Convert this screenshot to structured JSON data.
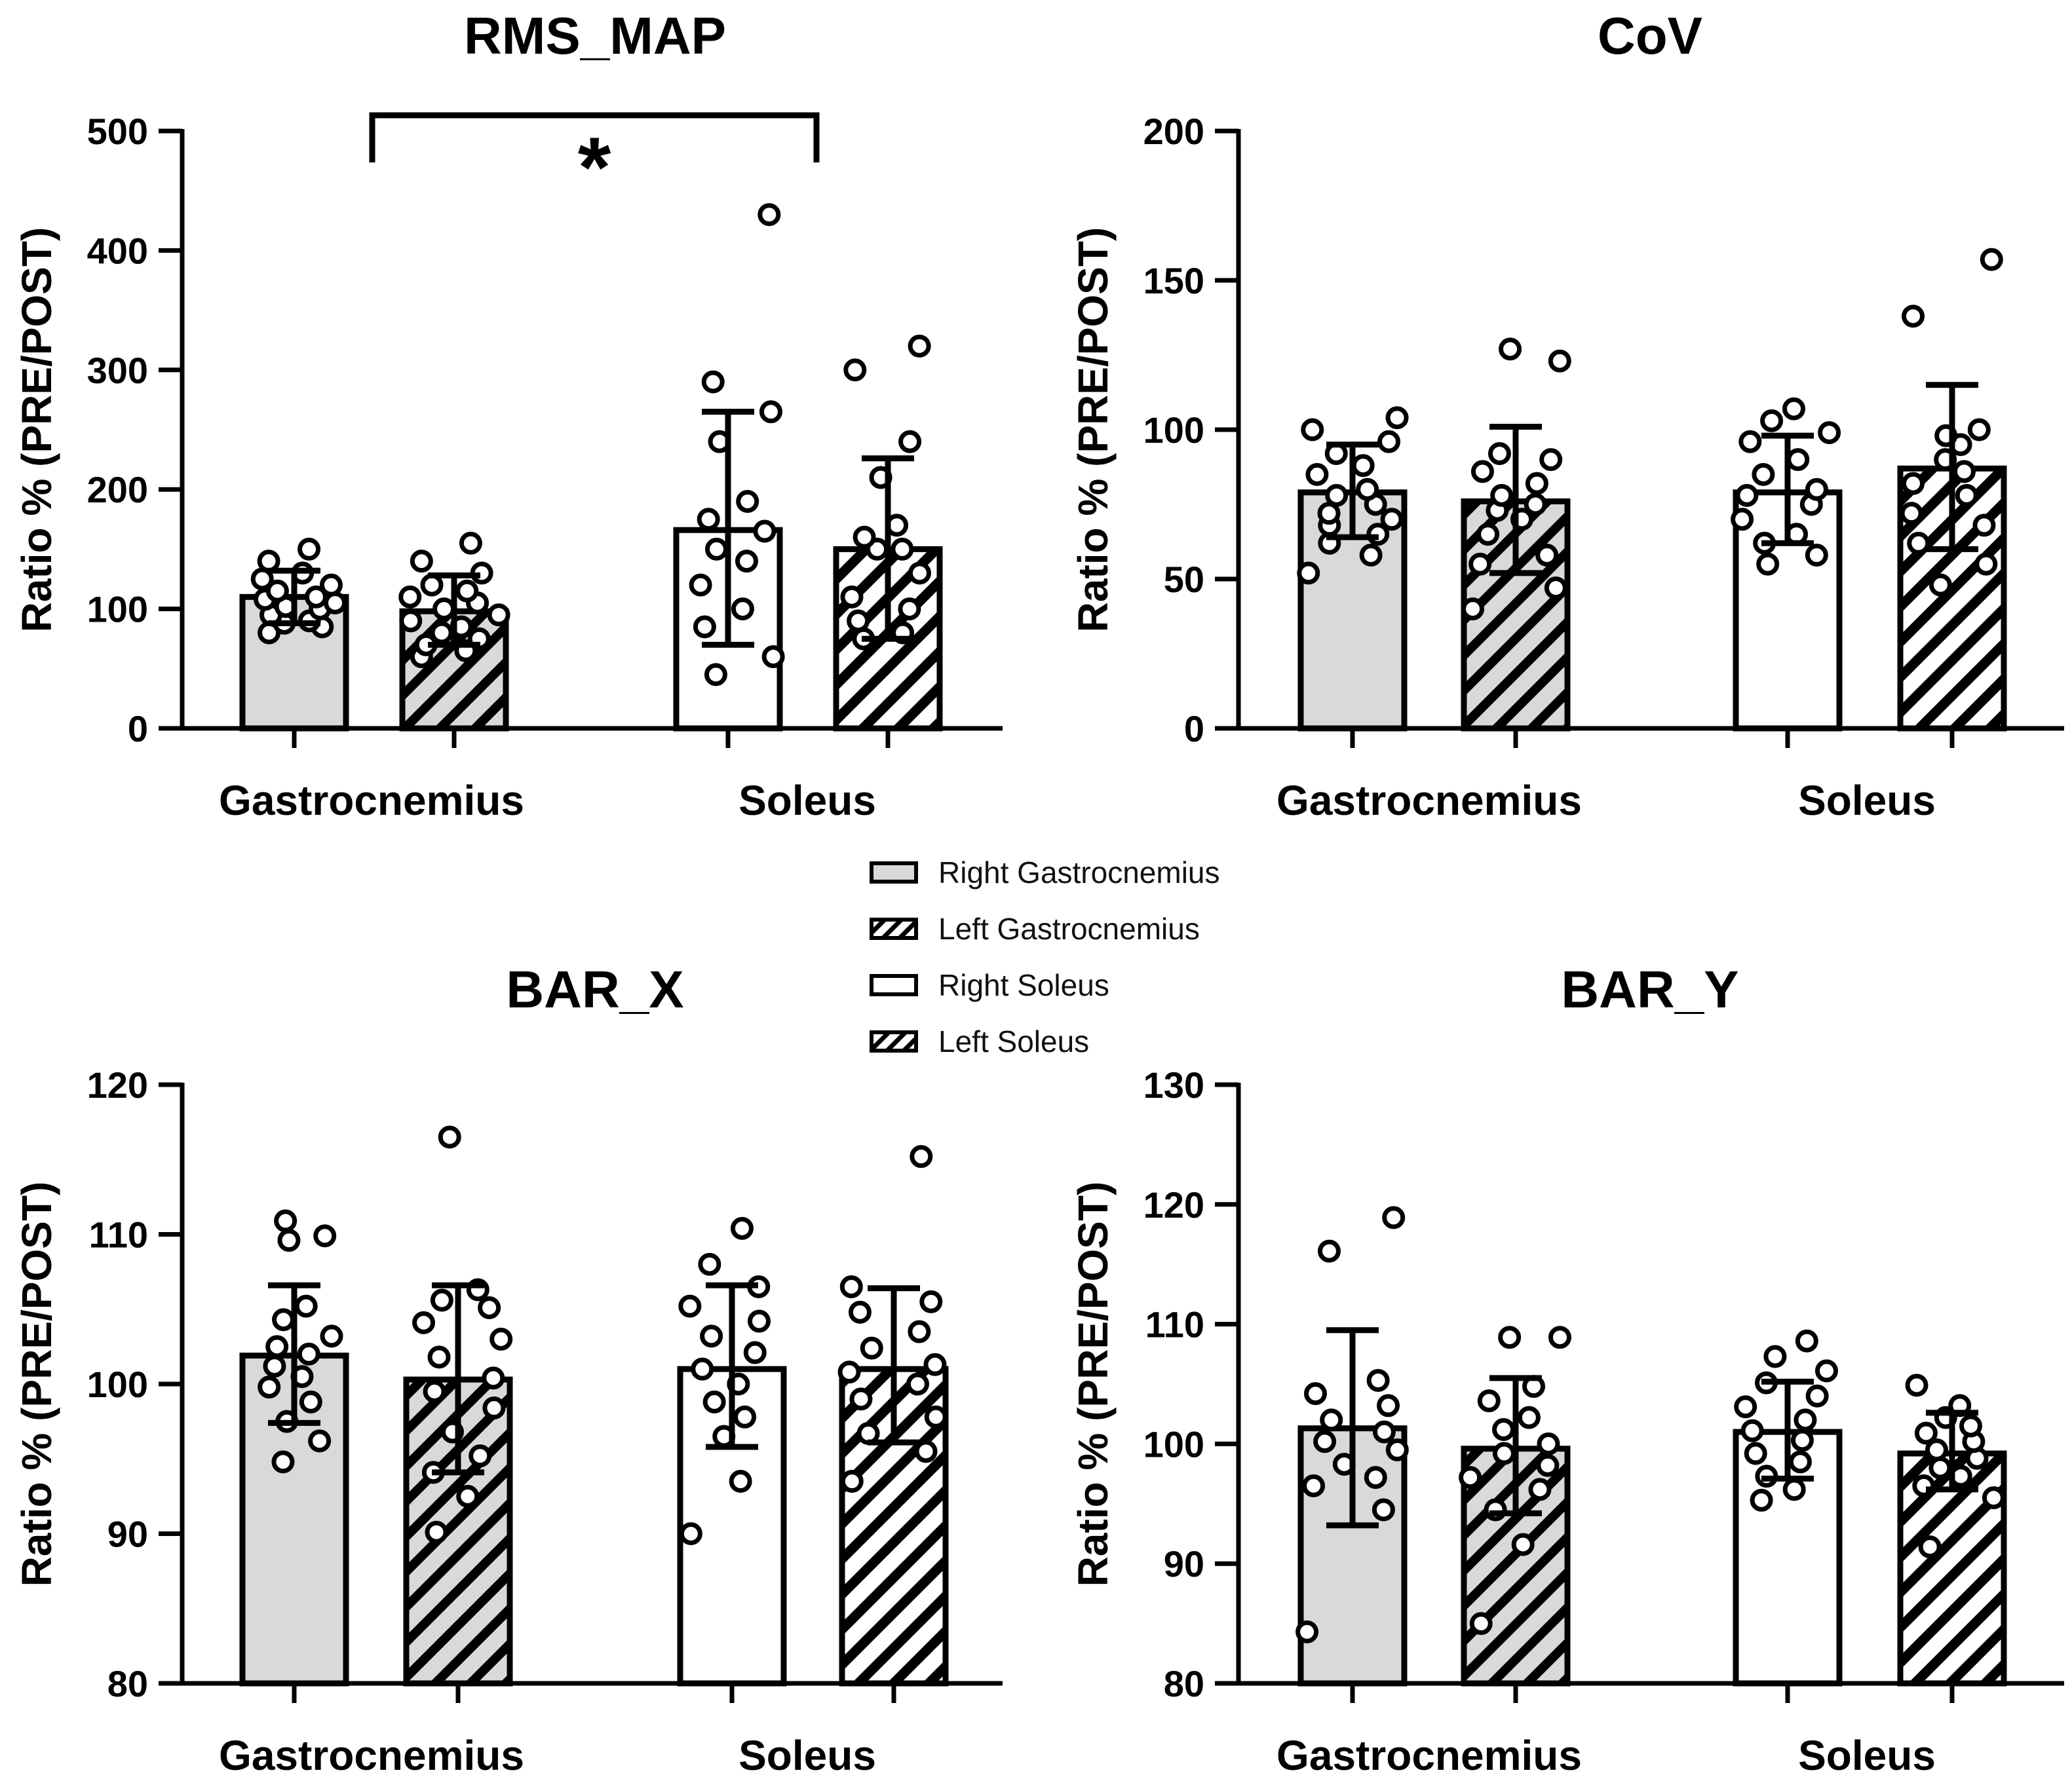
{
  "legend": {
    "items": [
      {
        "label": "Right Gastrocnemius",
        "fill": "#d9d9d9",
        "hatch": false
      },
      {
        "label": "Left Gastrocnemius",
        "fill": "#d9d9d9",
        "hatch": true
      },
      {
        "label": "Right Soleus",
        "fill": "#ffffff",
        "hatch": false
      },
      {
        "label": "Left Soleus",
        "fill": "#ffffff",
        "hatch": true
      }
    ]
  },
  "colors": {
    "gastro_fill": "#d9d9d9",
    "soleus_fill": "#ffffff",
    "stroke": "#000000"
  },
  "chart_data": [
    {
      "type": "bar",
      "title": "RMS_MAP",
      "ylabel": "Ratio % (PRE/POST)",
      "categories": [
        "Gastrocnemius",
        "Soleus"
      ],
      "ylim": [
        0,
        500
      ],
      "yticks": [
        0,
        100,
        200,
        300,
        400,
        500
      ],
      "annotation": "*",
      "series": [
        {
          "name": "Right Gastrocnemius",
          "value": 110,
          "error": [
            88,
            132
          ],
          "points": [
            80,
            85,
            88,
            90,
            95,
            100,
            102,
            105,
            108,
            110,
            115,
            120,
            125,
            130,
            140,
            150
          ]
        },
        {
          "name": "Left Gastrocnemius",
          "value": 98,
          "error": [
            70,
            128
          ],
          "points": [
            60,
            65,
            70,
            75,
            80,
            85,
            90,
            95,
            100,
            105,
            110,
            115,
            120,
            130,
            140,
            155
          ]
        },
        {
          "name": "Right Soleus",
          "value": 166,
          "error": [
            70,
            265
          ],
          "points": [
            45,
            60,
            85,
            100,
            120,
            140,
            150,
            165,
            175,
            190,
            240,
            265,
            290,
            430
          ]
        },
        {
          "name": "Left Soleus",
          "value": 150,
          "error": [
            75,
            226
          ],
          "points": [
            75,
            80,
            90,
            100,
            110,
            130,
            150,
            150,
            160,
            170,
            210,
            240,
            300,
            320
          ]
        }
      ]
    },
    {
      "type": "bar",
      "title": "CoV",
      "ylabel": "Ratio % (PRE/POST)",
      "categories": [
        "Gastrocnemius",
        "Soleus"
      ],
      "ylim": [
        0,
        200
      ],
      "yticks": [
        0,
        50,
        100,
        150,
        200
      ],
      "series": [
        {
          "name": "Right Gastrocnemius",
          "value": 79,
          "error": [
            64,
            95
          ],
          "points": [
            52,
            58,
            62,
            65,
            68,
            70,
            72,
            75,
            78,
            80,
            85,
            88,
            92,
            96,
            100,
            104
          ]
        },
        {
          "name": "Left Gastrocnemius",
          "value": 76,
          "error": [
            52,
            101
          ],
          "points": [
            40,
            47,
            55,
            58,
            65,
            70,
            73,
            75,
            78,
            82,
            86,
            90,
            92,
            123,
            127
          ]
        },
        {
          "name": "Right Soleus",
          "value": 79,
          "error": [
            62,
            98
          ],
          "points": [
            55,
            58,
            62,
            65,
            70,
            75,
            78,
            80,
            85,
            90,
            96,
            99,
            103,
            107
          ]
        },
        {
          "name": "Left Soleus",
          "value": 87,
          "error": [
            60,
            115
          ],
          "points": [
            48,
            55,
            62,
            68,
            72,
            78,
            82,
            86,
            90,
            95,
            98,
            100,
            138,
            157
          ]
        }
      ]
    },
    {
      "type": "bar",
      "title": "BAR_X",
      "ylabel": "Ratio % (PRE/POST)",
      "categories": [
        "Gastrocnemius",
        "Soleus"
      ],
      "ylim": [
        80,
        120
      ],
      "yticks": [
        80,
        90,
        100,
        110,
        120
      ],
      "series": [
        {
          "name": "Right Gastrocnemius",
          "value": 101.9,
          "error": [
            97.4,
            106.6
          ],
          "points": [
            94.8,
            96.2,
            97.5,
            98.8,
            99.8,
            100.5,
            101.2,
            102,
            102.5,
            103.2,
            104.3,
            105.2,
            109.6,
            109.9,
            110.9
          ]
        },
        {
          "name": "Left Gastrocnemius",
          "value": 100.3,
          "error": [
            94.1,
            106.6
          ],
          "points": [
            90.1,
            92.5,
            94.1,
            95.2,
            96.8,
            98.4,
            99.5,
            100.4,
            101.8,
            103,
            104.1,
            105.1,
            105.6,
            106.3,
            116.5
          ]
        },
        {
          "name": "Right Soleus",
          "value": 101,
          "error": [
            95.8,
            106.6
          ],
          "points": [
            90,
            93.5,
            96.5,
            97.8,
            98.8,
            100,
            101,
            102.1,
            103.2,
            104.2,
            105.2,
            106.5,
            108,
            110.4
          ]
        },
        {
          "name": "Left Soleus",
          "value": 101,
          "error": [
            96.1,
            106.4
          ],
          "points": [
            93.5,
            95.5,
            96.7,
            97.8,
            99,
            100,
            100.8,
            101.3,
            102.4,
            103.5,
            104.8,
            105.5,
            106.5,
            115.2
          ]
        }
      ]
    },
    {
      "type": "bar",
      "title": "BAR_Y",
      "ylabel": "Ratio % (PRE/POST)",
      "categories": [
        "Gastrocnemius",
        "Soleus"
      ],
      "ylim": [
        80,
        130
      ],
      "yticks": [
        80,
        90,
        100,
        110,
        120,
        130
      ],
      "series": [
        {
          "name": "Right Gastrocnemius",
          "value": 101.3,
          "error": [
            93.2,
            109.5
          ],
          "points": [
            84.3,
            94.5,
            96.5,
            97.2,
            98.3,
            99.5,
            100.2,
            101,
            102,
            103.2,
            104.2,
            105.3,
            116.1,
            118.9
          ]
        },
        {
          "name": "Left Gastrocnemius",
          "value": 99.6,
          "error": [
            94.2,
            105.5
          ],
          "points": [
            85,
            91.6,
            94.5,
            96.2,
            97.2,
            98.2,
            99.2,
            100,
            101.2,
            102.2,
            103.6,
            104.8,
            108.9,
            108.9
          ]
        },
        {
          "name": "Right Soleus",
          "value": 101,
          "error": [
            97.1,
            105.2
          ],
          "points": [
            95.3,
            96.2,
            97.3,
            98.5,
            99.2,
            100.3,
            101.1,
            102,
            103.1,
            104,
            105.1,
            106.1,
            107.3,
            108.6
          ]
        },
        {
          "name": "Left Soleus",
          "value": 99.2,
          "error": [
            96.2,
            102.6
          ],
          "points": [
            91.4,
            95.5,
            96.5,
            97.3,
            98,
            98.8,
            99.5,
            100.2,
            100.9,
            101.5,
            102.2,
            103.2,
            104.9
          ]
        }
      ]
    }
  ]
}
